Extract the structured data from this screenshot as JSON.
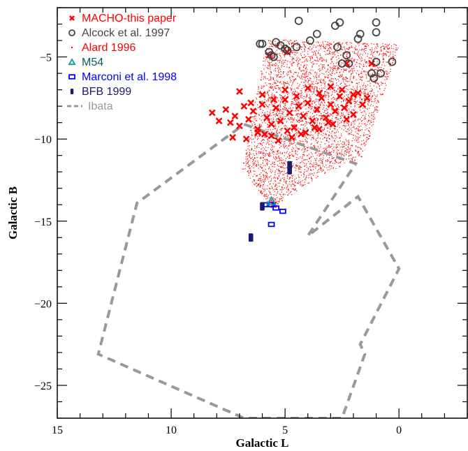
{
  "chart_data": {
    "type": "scatter",
    "xlabel": "Galactic L",
    "ylabel": "Galactic B",
    "xlim": [
      15,
      -3
    ],
    "ylim": [
      -27,
      -2
    ],
    "x_ticks": [
      15,
      10,
      5,
      0
    ],
    "y_ticks": [
      -25,
      -20,
      -15,
      -10,
      -5
    ],
    "legend_placement": "top-left",
    "series": [
      {
        "name": "MACHO-this paper",
        "marker": "x",
        "color": "#ff0000",
        "x": [
          8.2,
          7.9,
          7.6,
          7.4,
          7.2,
          7.0,
          6.8,
          6.6,
          6.4,
          6.2,
          6.0,
          5.8,
          5.6,
          5.4,
          5.2,
          5.0,
          4.8,
          4.6,
          4.4,
          4.2,
          4.0,
          3.8,
          3.6,
          3.4,
          3.2,
          3.0,
          2.8,
          2.6,
          2.4,
          2.2,
          2.0,
          1.8,
          1.6,
          1.4,
          7.0,
          6.5,
          6.0,
          5.5,
          5.0,
          4.5,
          4.0,
          3.5,
          3.0,
          2.5,
          2.0,
          6.2,
          5.6,
          4.9,
          4.3,
          3.7,
          3.1,
          7.3,
          6.7,
          5.9,
          5.3,
          4.7,
          4.1,
          3.5,
          2.9,
          2.3,
          5.5,
          5.7,
          4.9,
          2.3,
          1.2
        ],
        "y": [
          -8.4,
          -8.9,
          -8.2,
          -9.0,
          -8.6,
          -9.2,
          -8.0,
          -8.8,
          -8.3,
          -9.4,
          -7.9,
          -8.7,
          -9.1,
          -8.1,
          -8.9,
          -7.6,
          -8.4,
          -9.3,
          -8.0,
          -8.6,
          -7.8,
          -8.9,
          -8.2,
          -7.5,
          -8.7,
          -7.9,
          -8.3,
          -7.4,
          -8.1,
          -7.7,
          -8.5,
          -7.2,
          -7.9,
          -7.5,
          -7.1,
          -7.8,
          -7.3,
          -7.6,
          -7.0,
          -7.4,
          -6.9,
          -7.2,
          -6.8,
          -7.0,
          -7.3,
          -9.6,
          -9.8,
          -9.5,
          -9.7,
          -9.3,
          -9.0,
          -9.9,
          -10.0,
          -9.7,
          -10.1,
          -9.9,
          -9.6,
          -9.4,
          -9.1,
          -8.8,
          -14.0,
          -4.9,
          -4.7,
          -5.4,
          -5.4
        ]
      },
      {
        "name": "Alcock et al. 1997",
        "marker": "circle",
        "color": "#444444",
        "x": [
          4.4,
          3.6,
          2.8,
          2.6,
          1.7,
          1.0,
          1.0,
          5.4,
          5.2,
          6.0,
          6.1,
          5.7,
          5.6,
          5.5,
          4.9,
          5.0,
          4.5,
          3.9,
          2.7,
          2.3,
          1.8,
          2.5,
          2.2,
          1.0,
          1.2,
          1.1,
          0.8,
          0.3
        ],
        "y": [
          -2.8,
          -3.6,
          -3.1,
          -2.9,
          -3.6,
          -2.9,
          -3.5,
          -4.1,
          -4.3,
          -4.2,
          -4.2,
          -4.7,
          -4.9,
          -5.0,
          -4.6,
          -4.5,
          -4.4,
          -4.0,
          -4.4,
          -4.9,
          -3.9,
          -5.4,
          -5.4,
          -5.3,
          -6.0,
          -6.3,
          -6.0,
          -5.3
        ]
      },
      {
        "name": "Alard 1996",
        "marker": "dot",
        "color": "#ff0000",
        "region": [
          [
            5.8,
            -3.9
          ],
          [
            0.0,
            -4.2
          ],
          [
            1.6,
            -11.1
          ],
          [
            3.5,
            -12.2
          ],
          [
            5.6,
            -14.2
          ],
          [
            6.9,
            -11.8
          ]
        ]
      },
      {
        "name": "M54",
        "marker": "triangle",
        "color": "#00a0a0",
        "x": [
          5.6
        ],
        "y": [
          -13.8
        ]
      },
      {
        "name": "Marconi et al. 1998",
        "marker": "square",
        "color": "#0000ff",
        "x": [
          5.9,
          5.6,
          5.4,
          5.1,
          5.6
        ],
        "y": [
          -14.0,
          -14.0,
          -14.2,
          -14.4,
          -15.2
        ]
      },
      {
        "name": "BFB 1999",
        "marker": "filled-square",
        "color": "#1a1a6e",
        "x": [
          6.0,
          4.8,
          4.8,
          6.5
        ],
        "y": [
          -14.1,
          -11.6,
          -11.9,
          -16.0
        ]
      },
      {
        "name": "Ibata",
        "marker": "dashed-line",
        "color": "#999999",
        "x": [
          6.8,
          1.9,
          4.0,
          1.8,
          0.0,
          1.7,
          1.5,
          2.5,
          6.8,
          13.2,
          11.5,
          6.8
        ],
        "y": [
          -9.1,
          -11.5,
          -15.9,
          -13.5,
          -17.9,
          -22.5,
          -23.1,
          -27.0,
          -27.0,
          -23.1,
          -13.9,
          -9.1
        ]
      }
    ]
  }
}
